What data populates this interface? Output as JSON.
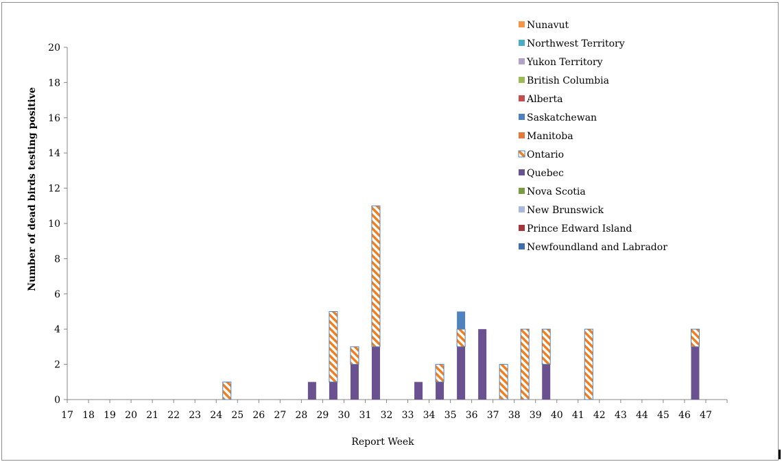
{
  "chart_data": {
    "type": "bar",
    "stacked": true,
    "title": "",
    "xlabel": "Report Week",
    "ylabel": "Number of dead birds testing positive",
    "ylim": [
      0,
      20
    ],
    "yticks": [
      0,
      2,
      4,
      6,
      8,
      10,
      12,
      14,
      16,
      18,
      20
    ],
    "categories": [
      "17",
      "18",
      "19",
      "20",
      "21",
      "22",
      "23",
      "24",
      "25",
      "26",
      "27",
      "28",
      "29",
      "30",
      "31",
      "32",
      "33",
      "34",
      "35",
      "36",
      "37",
      "38",
      "39",
      "40",
      "41",
      "42",
      "43",
      "44",
      "45",
      "46",
      "47"
    ],
    "legend_position": "top-right",
    "series": [
      {
        "name": "Newfoundland and Labrador",
        "color": "#3f6ea8",
        "pattern": "solid",
        "values": [
          0,
          0,
          0,
          0,
          0,
          0,
          0,
          0,
          0,
          0,
          0,
          0,
          0,
          0,
          0,
          0,
          0,
          0,
          0,
          0,
          0,
          0,
          0,
          0,
          0,
          0,
          0,
          0,
          0,
          0,
          0
        ]
      },
      {
        "name": "Prince Edward Island",
        "color": "#a5373a",
        "pattern": "solid",
        "values": [
          0,
          0,
          0,
          0,
          0,
          0,
          0,
          0,
          0,
          0,
          0,
          0,
          0,
          0,
          0,
          0,
          0,
          0,
          0,
          0,
          0,
          0,
          0,
          0,
          0,
          0,
          0,
          0,
          0,
          0,
          0
        ]
      },
      {
        "name": "New Brunswick",
        "color": "#a7b9dc",
        "pattern": "solid",
        "values": [
          0,
          0,
          0,
          0,
          0,
          0,
          0,
          0,
          0,
          0,
          0,
          0,
          0,
          0,
          0,
          0,
          0,
          0,
          0,
          0,
          0,
          0,
          0,
          0,
          0,
          0,
          0,
          0,
          0,
          0,
          0
        ]
      },
      {
        "name": "Nova Scotia",
        "color": "#7a9c45",
        "pattern": "solid",
        "values": [
          0,
          0,
          0,
          0,
          0,
          0,
          0,
          0,
          0,
          0,
          0,
          0,
          0,
          0,
          0,
          0,
          0,
          0,
          0,
          0,
          0,
          0,
          0,
          0,
          0,
          0,
          0,
          0,
          0,
          0,
          0
        ]
      },
      {
        "name": "Quebec",
        "color": "#6a5190",
        "pattern": "solid",
        "values": [
          0,
          0,
          0,
          0,
          0,
          0,
          0,
          0,
          0,
          0,
          0,
          1,
          1,
          2,
          3,
          0,
          1,
          1,
          3,
          4,
          0,
          0,
          2,
          0,
          0,
          0,
          0,
          0,
          0,
          3,
          0
        ]
      },
      {
        "name": "Ontario",
        "color": "#f07f1f",
        "pattern": "hatch",
        "values": [
          0,
          0,
          0,
          0,
          0,
          0,
          0,
          1,
          0,
          0,
          0,
          0,
          4,
          1,
          8,
          0,
          0,
          1,
          1,
          0,
          2,
          4,
          2,
          0,
          4,
          0,
          0,
          0,
          0,
          1,
          0
        ]
      },
      {
        "name": "Manitoba",
        "color": "#e07b39",
        "pattern": "solid",
        "values": [
          0,
          0,
          0,
          0,
          0,
          0,
          0,
          0,
          0,
          0,
          0,
          0,
          0,
          0,
          0,
          0,
          0,
          0,
          0,
          0,
          0,
          0,
          0,
          0,
          0,
          0,
          0,
          0,
          0,
          0,
          0
        ]
      },
      {
        "name": "Saskatchewan",
        "color": "#4f81bd",
        "pattern": "solid",
        "values": [
          0,
          0,
          0,
          0,
          0,
          0,
          0,
          0,
          0,
          0,
          0,
          0,
          0,
          0,
          0,
          0,
          0,
          0,
          1,
          0,
          0,
          0,
          0,
          0,
          0,
          0,
          0,
          0,
          0,
          0,
          0
        ]
      },
      {
        "name": "Alberta",
        "color": "#c0504d",
        "pattern": "solid",
        "values": [
          0,
          0,
          0,
          0,
          0,
          0,
          0,
          0,
          0,
          0,
          0,
          0,
          0,
          0,
          0,
          0,
          0,
          0,
          0,
          0,
          0,
          0,
          0,
          0,
          0,
          0,
          0,
          0,
          0,
          0,
          0
        ]
      },
      {
        "name": "British Columbia",
        "color": "#9bbb59",
        "pattern": "solid",
        "values": [
          0,
          0,
          0,
          0,
          0,
          0,
          0,
          0,
          0,
          0,
          0,
          0,
          0,
          0,
          0,
          0,
          0,
          0,
          0,
          0,
          0,
          0,
          0,
          0,
          0,
          0,
          0,
          0,
          0,
          0,
          0
        ]
      },
      {
        "name": "Yukon Territory",
        "color": "#b3a2c7",
        "pattern": "solid",
        "values": [
          0,
          0,
          0,
          0,
          0,
          0,
          0,
          0,
          0,
          0,
          0,
          0,
          0,
          0,
          0,
          0,
          0,
          0,
          0,
          0,
          0,
          0,
          0,
          0,
          0,
          0,
          0,
          0,
          0,
          0,
          0
        ]
      },
      {
        "name": "Northwest Territory",
        "color": "#4bacc6",
        "pattern": "solid",
        "values": [
          0,
          0,
          0,
          0,
          0,
          0,
          0,
          0,
          0,
          0,
          0,
          0,
          0,
          0,
          0,
          0,
          0,
          0,
          0,
          0,
          0,
          0,
          0,
          0,
          0,
          0,
          0,
          0,
          0,
          0,
          0
        ]
      },
      {
        "name": "Nunavut",
        "color": "#f79646",
        "pattern": "solid",
        "values": [
          0,
          0,
          0,
          0,
          0,
          0,
          0,
          0,
          0,
          0,
          0,
          0,
          0,
          0,
          0,
          0,
          0,
          0,
          0,
          0,
          0,
          0,
          0,
          0,
          0,
          0,
          0,
          0,
          0,
          0,
          0
        ]
      }
    ]
  }
}
